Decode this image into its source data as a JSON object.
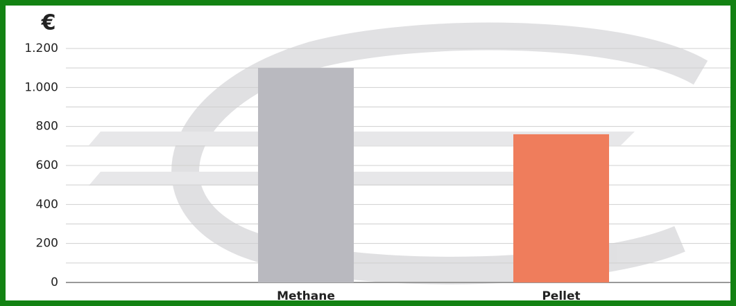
{
  "chart_data": {
    "type": "bar",
    "y_label": "€",
    "categories": [
      "Methane",
      "Pellet"
    ],
    "values": [
      1100,
      760
    ],
    "colors": [
      "#b9b9bf",
      "#ef7d5c"
    ],
    "ylim": [
      0,
      1200
    ],
    "yticks": [
      0,
      200,
      400,
      600,
      800,
      {
        "value": 1000,
        "label": "1.000"
      },
      {
        "value": 1200,
        "label": "1.200"
      }
    ],
    "grid": true,
    "minor_grid": true
  }
}
